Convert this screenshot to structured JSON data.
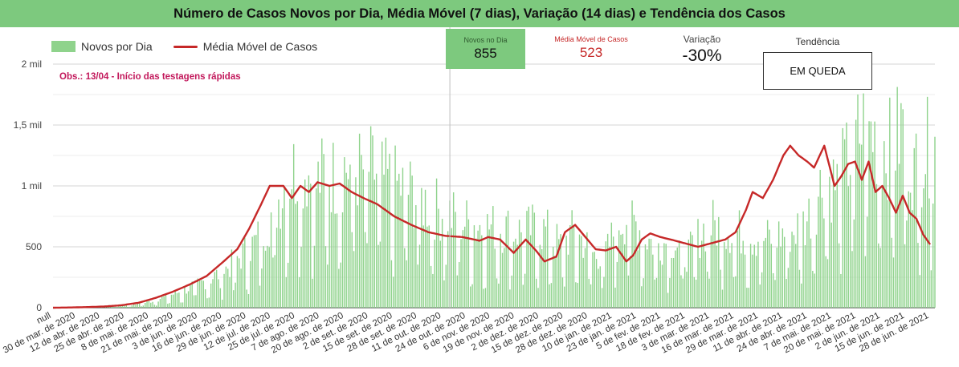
{
  "title": "Número de Casos Novos por Dia, Média Móvel (7 dias), Variação (14 dias) e Tendência dos Casos",
  "legend": {
    "bars": "Novos por Dia",
    "line": "Média Móvel de Casos"
  },
  "annotation": "Obs.: 13/04 - Início das testagens rápidas",
  "cards": {
    "novos": {
      "label": "Novos no Dia",
      "value": "855"
    },
    "media": {
      "label": "Média Móvel de Casos",
      "value": "523"
    },
    "variacao": {
      "label": "Variação",
      "value": "-30%"
    },
    "tendencia": {
      "label": "Tendência",
      "value": "EM QUEDA"
    }
  },
  "colors": {
    "bars": "#8fd38c",
    "line": "#c62828",
    "header": "#7dc97e"
  },
  "chart_data": {
    "type": "bar",
    "ylim": [
      0,
      2000
    ],
    "grid": true,
    "yticks": [
      0,
      500,
      1000,
      1500,
      2000
    ],
    "ytick_labels": [
      "0",
      "500",
      "1 mil",
      "1,5 mil",
      "2 mil"
    ],
    "xtick_labels": [
      "null",
      "30 de mar. de 2020",
      "12 de abr. de 2020",
      "25 de abr. de 2020",
      "8 de mai. de 2020",
      "21 de mai. de 2020",
      "3 de jun. de 2020",
      "16 de jun. de 2020",
      "29 de jun. de 2020",
      "12 de jul. de 2020",
      "25 de jul. de 2020",
      "7 de ago. de 2020",
      "20 de ago. de 2020",
      "2 de set. de 2020",
      "15 de set. de 2020",
      "28 de set. de 2020",
      "11 de out. de 2020",
      "24 de out. de 2020",
      "6 de nov. de 2020",
      "19 de nov. de 2020",
      "2 de dez. de 2020",
      "15 de dez. de 2020",
      "28 de dez. de 2020",
      "10 de jan. de 2021",
      "23 de jan. de 2021",
      "5 de fev. de 2021",
      "18 de fev. de 2021",
      "3 de mar. de 2021",
      "16 de mar. de 2021",
      "29 de mar. de 2021",
      "11 de abr. de 2021",
      "24 de abr. de 2021",
      "7 de mai. de 2021",
      "20 de mai. de 2021",
      "2 de jun. de 2021",
      "15 de jun. de 2021",
      "28 de jun. de 2021"
    ],
    "n_days": 470,
    "moving_average_keypoints": [
      [
        0,
        0
      ],
      [
        10,
        2
      ],
      [
        20,
        5
      ],
      [
        30,
        10
      ],
      [
        40,
        20
      ],
      [
        50,
        40
      ],
      [
        60,
        80
      ],
      [
        70,
        130
      ],
      [
        80,
        190
      ],
      [
        90,
        260
      ],
      [
        100,
        380
      ],
      [
        108,
        480
      ],
      [
        115,
        650
      ],
      [
        122,
        850
      ],
      [
        127,
        1000
      ],
      [
        135,
        1000
      ],
      [
        140,
        900
      ],
      [
        145,
        1000
      ],
      [
        150,
        950
      ],
      [
        155,
        1030
      ],
      [
        162,
        1000
      ],
      [
        168,
        1020
      ],
      [
        175,
        950
      ],
      [
        182,
        900
      ],
      [
        190,
        850
      ],
      [
        200,
        750
      ],
      [
        210,
        680
      ],
      [
        220,
        620
      ],
      [
        230,
        590
      ],
      [
        240,
        580
      ],
      [
        250,
        550
      ],
      [
        255,
        580
      ],
      [
        262,
        560
      ],
      [
        270,
        450
      ],
      [
        277,
        560
      ],
      [
        283,
        470
      ],
      [
        288,
        380
      ],
      [
        295,
        420
      ],
      [
        300,
        620
      ],
      [
        306,
        680
      ],
      [
        312,
        580
      ],
      [
        318,
        480
      ],
      [
        324,
        470
      ],
      [
        330,
        500
      ],
      [
        336,
        380
      ],
      [
        340,
        430
      ],
      [
        345,
        560
      ],
      [
        350,
        610
      ],
      [
        356,
        580
      ],
      [
        362,
        560
      ],
      [
        370,
        530
      ],
      [
        378,
        500
      ],
      [
        386,
        530
      ],
      [
        394,
        560
      ],
      [
        400,
        620
      ],
      [
        406,
        800
      ],
      [
        410,
        950
      ],
      [
        416,
        900
      ],
      [
        422,
        1050
      ],
      [
        428,
        1250
      ],
      [
        432,
        1330
      ],
      [
        437,
        1250
      ],
      [
        442,
        1200
      ],
      [
        446,
        1150
      ],
      [
        452,
        1330
      ],
      [
        458,
        1000
      ],
      [
        462,
        1080
      ],
      [
        466,
        1180
      ],
      [
        470,
        1200
      ],
      [
        474,
        1050
      ],
      [
        478,
        1200
      ],
      [
        482,
        950
      ],
      [
        486,
        1000
      ],
      [
        490,
        900
      ],
      [
        494,
        780
      ],
      [
        498,
        920
      ],
      [
        502,
        780
      ],
      [
        506,
        730
      ],
      [
        510,
        600
      ],
      [
        514,
        520
      ]
    ]
  }
}
